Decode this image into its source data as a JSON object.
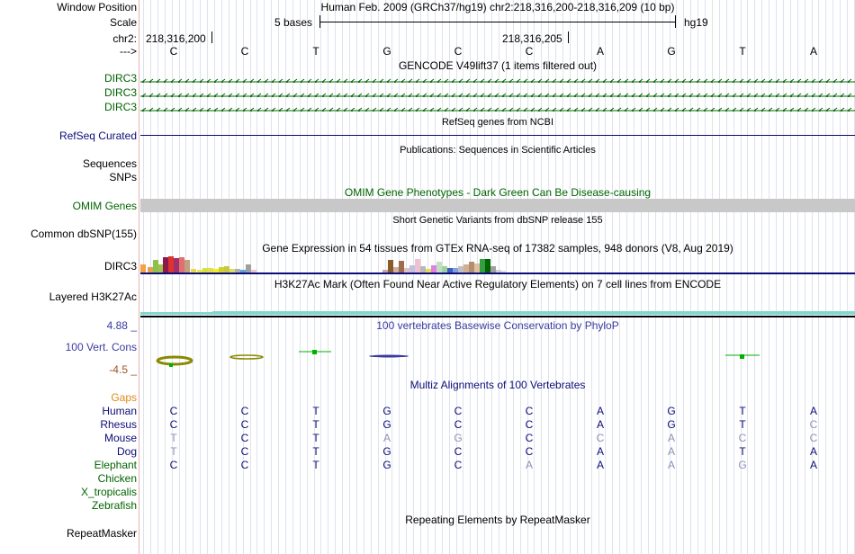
{
  "header": {
    "window_position_label": "Window Position",
    "window_position_text": "Human Feb. 2009 (GRCh37/hg19)   chr2:218,316,200-218,316,209 (10 bp)",
    "scale_label": "Scale",
    "scale_text": "5 bases",
    "scale_assembly": "hg19",
    "chr_label": "chr2:",
    "coord_start": "218,316,200",
    "coord_mid": "218,316,205",
    "strand_label": "--->"
  },
  "sequence": [
    "C",
    "C",
    "T",
    "G",
    "C",
    "C",
    "A",
    "G",
    "T",
    "A"
  ],
  "tracks": {
    "gencode": {
      "title": "GENCODE V49lift37 (1 items filtered out)",
      "labels": [
        "DIRC3",
        "DIRC3",
        "DIRC3"
      ]
    },
    "refseq": {
      "title": "RefSeq genes from NCBI",
      "label": "RefSeq Curated"
    },
    "publications": {
      "title": "Publications: Sequences in Scientific Articles",
      "labels": [
        "Sequences",
        "SNPs"
      ]
    },
    "omim": {
      "title": "OMIM Gene Phenotypes - Dark Green Can Be Disease-causing",
      "label": "OMIM Genes"
    },
    "dbsnp": {
      "title": "Short Genetic Variants from dbSNP release 155",
      "label": "Common dbSNP(155)"
    },
    "gtex": {
      "title": "Gene Expression in 54 tissues from GTEx RNA-seq of 17382 samples, 948 donors (V8, Aug 2019)",
      "label": "DIRC3"
    },
    "h3k27ac": {
      "title": "H3K27Ac Mark (Often Found Near Active Regulatory Elements) on 7 cell lines from ENCODE",
      "label": "Layered H3K27Ac"
    },
    "cons": {
      "title": "100 vertebrates Basewise Conservation by PhyloP",
      "label": "100 Vert. Cons",
      "max": "4.88 _",
      "min": "-4.5 _"
    },
    "multiz": {
      "title": "Multiz Alignments of 100 Vertebrates",
      "gaps_label": "Gaps",
      "species": [
        {
          "name": "Human",
          "bases": [
            "C",
            "C",
            "T",
            "G",
            "C",
            "C",
            "A",
            "G",
            "T",
            "A"
          ]
        },
        {
          "name": "Rhesus",
          "bases": [
            "C",
            "C",
            "T",
            "G",
            "C",
            "C",
            "A",
            "G",
            "T",
            "C"
          ]
        },
        {
          "name": "Mouse",
          "bases": [
            "T",
            "C",
            "T",
            "A",
            "G",
            "C",
            "C",
            "A",
            "C",
            "C"
          ]
        },
        {
          "name": "Dog",
          "bases": [
            "T",
            "C",
            "T",
            "G",
            "C",
            "C",
            "A",
            "A",
            "T",
            "A"
          ]
        },
        {
          "name": "Elephant",
          "bases": [
            "C",
            "C",
            "T",
            "G",
            "C",
            "A",
            "A",
            "A",
            "G",
            "A"
          ]
        },
        {
          "name": "Chicken",
          "bases": []
        },
        {
          "name": "X_tropicalis",
          "bases": []
        },
        {
          "name": "Zebrafish",
          "bases": []
        }
      ]
    },
    "repeatmasker": {
      "title": "Repeating Elements by RepeatMasker",
      "label": "RepeatMasker"
    }
  },
  "colors": {
    "green": "#006400",
    "navy": "#0c0c78",
    "orange": "#e08a1a",
    "omim_gray": "#c8c8c8",
    "h3k27ac": "#7fd8d0"
  }
}
